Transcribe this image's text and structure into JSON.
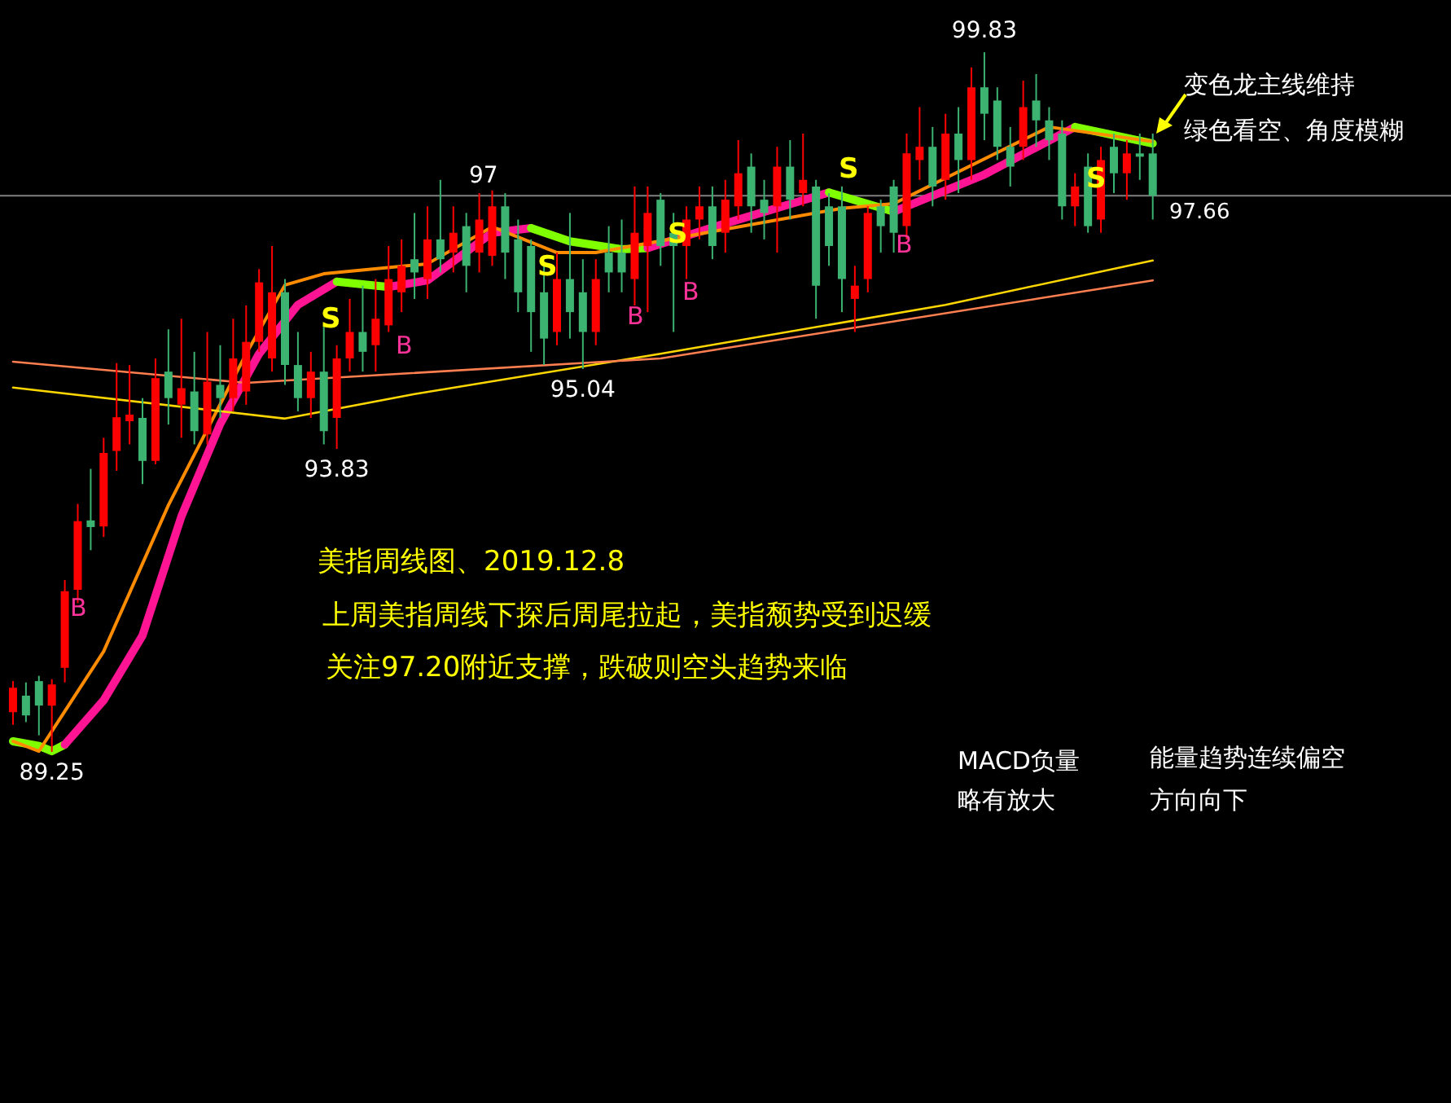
{
  "chart_data": {
    "type": "candlestick",
    "categories": [
      null,
      null,
      null,
      null,
      null,
      null,
      null,
      null,
      null,
      null,
      null,
      null,
      null,
      null,
      null,
      null,
      null,
      null,
      null,
      null,
      null,
      null,
      null,
      null,
      null,
      null,
      null,
      null,
      null,
      null,
      null,
      null,
      null,
      null,
      null,
      null,
      null,
      null,
      null,
      null,
      null,
      null,
      null,
      null,
      null,
      null,
      null,
      null,
      null,
      null,
      null,
      null,
      null,
      null,
      null,
      null,
      null,
      null,
      null,
      null,
      null,
      null,
      null,
      null,
      null,
      null,
      null,
      null,
      null,
      null,
      null,
      null,
      null,
      null,
      null,
      null,
      null,
      null,
      null,
      null,
      null,
      null,
      null,
      null,
      null,
      null,
      null,
      null,
      null
    ],
    "ohlc": [
      [
        89.85,
        90.32,
        89.66,
        90.22
      ],
      [
        90.1,
        90.3,
        89.7,
        89.8
      ],
      [
        90.32,
        90.4,
        89.5,
        89.95
      ],
      [
        89.95,
        90.35,
        89.25,
        90.27
      ],
      [
        90.52,
        91.85,
        90.3,
        91.68
      ],
      [
        91.7,
        93.0,
        91.5,
        92.74
      ],
      [
        92.75,
        93.53,
        92.3,
        92.65
      ],
      [
        92.66,
        94.0,
        92.5,
        93.77
      ],
      [
        93.8,
        95.13,
        93.5,
        94.31
      ],
      [
        94.25,
        95.1,
        93.9,
        94.35
      ],
      [
        94.3,
        94.6,
        93.3,
        93.65
      ],
      [
        93.65,
        95.2,
        93.6,
        94.9
      ],
      [
        95.0,
        95.64,
        94.2,
        94.6
      ],
      [
        94.5,
        95.8,
        94.0,
        94.75
      ],
      [
        94.7,
        95.3,
        93.9,
        94.1
      ],
      [
        94.05,
        95.6,
        93.9,
        94.85
      ],
      [
        94.8,
        95.4,
        94.3,
        94.6
      ],
      [
        94.6,
        95.8,
        94.4,
        95.2
      ],
      [
        94.7,
        96.0,
        94.5,
        95.45
      ],
      [
        95.45,
        96.55,
        95.3,
        96.35
      ],
      [
        95.2,
        96.9,
        95.0,
        96.2
      ],
      [
        96.2,
        96.4,
        94.8,
        95.1
      ],
      [
        95.1,
        95.6,
        94.4,
        94.6
      ],
      [
        94.6,
        95.3,
        94.3,
        95.0
      ],
      [
        95.0,
        95.7,
        93.9,
        94.1
      ],
      [
        94.3,
        95.4,
        93.83,
        95.2
      ],
      [
        95.2,
        96.1,
        95.0,
        95.6
      ],
      [
        95.6,
        96.3,
        95.0,
        95.3
      ],
      [
        95.4,
        96.4,
        95.0,
        95.8
      ],
      [
        95.7,
        96.9,
        95.6,
        96.4
      ],
      [
        96.2,
        97.0,
        95.9,
        96.6
      ],
      [
        96.7,
        97.4,
        96.1,
        96.5
      ],
      [
        96.4,
        97.5,
        96.1,
        97.0
      ],
      [
        97.0,
        97.9,
        96.5,
        96.7
      ],
      [
        96.8,
        97.5,
        96.5,
        97.1
      ],
      [
        97.2,
        97.4,
        96.2,
        96.6
      ],
      [
        96.8,
        97.7,
        96.5,
        97.3
      ],
      [
        96.75,
        97.74,
        96.6,
        97.5
      ],
      [
        97.5,
        97.7,
        96.4,
        96.8
      ],
      [
        97.0,
        97.3,
        95.9,
        96.2
      ],
      [
        96.9,
        97.0,
        95.3,
        95.9
      ],
      [
        96.2,
        96.6,
        95.1,
        95.5
      ],
      [
        95.6,
        96.8,
        95.4,
        96.4
      ],
      [
        96.4,
        97.4,
        95.5,
        95.9
      ],
      [
        96.2,
        96.7,
        95.04,
        95.6
      ],
      [
        95.6,
        96.7,
        95.4,
        96.4
      ],
      [
        96.8,
        97.2,
        96.2,
        96.5
      ],
      [
        96.8,
        97.3,
        96.2,
        96.5
      ],
      [
        96.4,
        97.8,
        96.0,
        97.1
      ],
      [
        96.9,
        97.8,
        95.9,
        97.4
      ],
      [
        97.6,
        97.7,
        96.6,
        96.9
      ],
      [
        97.1,
        97.4,
        95.6,
        96.9
      ],
      [
        96.9,
        97.5,
        96.4,
        97.3
      ],
      [
        97.3,
        97.8,
        97.0,
        97.5
      ],
      [
        97.5,
        97.8,
        96.7,
        96.9
      ],
      [
        97.1,
        97.9,
        96.8,
        97.6
      ],
      [
        97.5,
        98.5,
        97.3,
        98.0
      ],
      [
        98.1,
        98.3,
        97.1,
        97.5
      ],
      [
        97.6,
        97.9,
        97.0,
        97.4
      ],
      [
        97.5,
        98.4,
        96.8,
        98.1
      ],
      [
        98.1,
        98.5,
        97.3,
        97.6
      ],
      [
        97.7,
        98.6,
        97.5,
        97.9
      ],
      [
        97.8,
        97.9,
        95.8,
        96.3
      ],
      [
        97.5,
        97.7,
        96.6,
        96.9
      ],
      [
        97.5,
        97.8,
        95.9,
        96.4
      ],
      [
        96.1,
        96.6,
        95.6,
        96.3
      ],
      [
        96.4,
        97.5,
        96.2,
        97.4
      ],
      [
        97.5,
        97.6,
        96.8,
        97.2
      ],
      [
        97.8,
        97.9,
        96.8,
        97.1
      ],
      [
        97.2,
        98.6,
        97.0,
        98.3
      ],
      [
        98.2,
        99.0,
        97.9,
        98.4
      ],
      [
        98.4,
        98.7,
        97.5,
        97.8
      ],
      [
        97.9,
        98.9,
        97.6,
        98.6
      ],
      [
        98.6,
        99.0,
        97.7,
        98.2
      ],
      [
        98.2,
        99.6,
        97.9,
        99.3
      ],
      [
        99.3,
        99.83,
        98.5,
        98.9
      ],
      [
        99.1,
        99.3,
        98.2,
        98.4
      ],
      [
        98.4,
        98.7,
        97.8,
        98.1
      ],
      [
        98.4,
        99.4,
        98.2,
        99.0
      ],
      [
        99.1,
        99.5,
        98.4,
        98.8
      ],
      [
        98.8,
        99.0,
        98.2,
        98.5
      ],
      [
        98.6,
        98.8,
        97.3,
        97.5
      ],
      [
        97.5,
        98.0,
        97.2,
        97.8
      ],
      [
        98.1,
        98.3,
        97.1,
        97.2
      ],
      [
        97.3,
        98.4,
        97.1,
        98.2
      ],
      [
        98.4,
        98.6,
        97.7,
        98.0
      ],
      [
        98.0,
        98.5,
        97.6,
        98.3
      ],
      [
        98.3,
        98.6,
        97.9,
        98.25
      ],
      [
        98.3,
        98.6,
        97.3,
        97.66
      ]
    ],
    "colors": [
      "#ff0000",
      "#3cb371",
      "#3cb371",
      "#ff0000",
      "#ff0000",
      "#ff0000",
      "#3cb371",
      "#ff0000",
      "#ff0000",
      "#ff0000",
      "#3cb371",
      "#ff0000",
      "#3cb371",
      "#ff0000",
      "#3cb371",
      "#ff0000",
      "#3cb371",
      "#ff0000",
      "#ff0000",
      "#ff0000",
      "#ff0000",
      "#3cb371",
      "#3cb371",
      "#ff0000",
      "#3cb371",
      "#ff0000",
      "#ff0000",
      "#3cb371",
      "#ff0000",
      "#ff0000",
      "#ff0000",
      "#3cb371",
      "#ff0000",
      "#3cb371",
      "#ff0000",
      "#3cb371",
      "#ff0000",
      "#ff0000",
      "#3cb371",
      "#3cb371",
      "#3cb371",
      "#3cb371",
      "#ff0000",
      "#3cb371",
      "#3cb371",
      "#ff0000",
      "#3cb371",
      "#3cb371",
      "#ff0000",
      "#ff0000",
      "#3cb371",
      "#3cb371",
      "#ff0000",
      "#ff0000",
      "#3cb371",
      "#ff0000",
      "#ff0000",
      "#3cb371",
      "#3cb371",
      "#ff0000",
      "#3cb371",
      "#ff0000",
      "#3cb371",
      "#3cb371",
      "#3cb371",
      "#ff0000",
      "#ff0000",
      "#3cb371",
      "#3cb371",
      "#ff0000",
      "#ff0000",
      "#3cb371",
      "#ff0000",
      "#3cb371",
      "#ff0000",
      "#3cb371",
      "#3cb371",
      "#3cb371",
      "#ff0000",
      "#3cb371",
      "#3cb371",
      "#3cb371",
      "#ff0000",
      "#3cb371",
      "#ff0000",
      "#3cb371",
      "#ff0000",
      "#3cb371",
      "#3cb371"
    ],
    "series": [
      {
        "type": "line",
        "color": "#80ff00",
        "values": [
          89.41,
          null,
          89.34,
          89.26,
          89.36,
          null,
          null,
          null,
          null,
          null,
          null,
          null,
          null,
          null,
          null,
          null,
          null,
          null,
          null,
          null,
          null,
          null,
          null,
          null,
          null,
          null,
          null,
          null,
          null,
          null,
          null,
          null,
          null,
          null,
          null,
          null,
          null,
          null,
          null,
          null,
          null,
          null,
          null,
          null,
          null,
          null,
          null,
          null,
          null,
          null,
          null,
          null,
          null,
          null,
          null,
          null,
          null,
          null,
          null,
          null,
          null,
          null,
          null,
          null,
          null,
          null,
          null,
          null,
          null,
          null,
          null,
          null,
          null,
          null,
          null,
          null,
          null,
          null,
          null,
          null,
          null,
          null,
          null,
          null,
          null,
          null,
          null,
          null,
          null
        ]
      },
      {
        "type": "line",
        "color": "#ff1493",
        "values": [
          null,
          null,
          null,
          null,
          89.36,
          null,
          null,
          90.03,
          null,
          null,
          91.01,
          null,
          null,
          92.81,
          null,
          null,
          94.21,
          null,
          null,
          95.27,
          null,
          null,
          96.01,
          null,
          null,
          96.36,
          null,
          null,
          null,
          null,
          null,
          null,
          null,
          null,
          null,
          null,
          null,
          null,
          null,
          null,
          null,
          null,
          null,
          null,
          null,
          null,
          null,
          null,
          null,
          null,
          null,
          null,
          null,
          null,
          null,
          null,
          null,
          null,
          null,
          null,
          null,
          null,
          null,
          null,
          null,
          null,
          null,
          null,
          null,
          null,
          null,
          null,
          null,
          null,
          null,
          null,
          null,
          null,
          null,
          null,
          null,
          null,
          null,
          null,
          null,
          null,
          null,
          null,
          null
        ]
      },
      {
        "type": "line",
        "color": "#80ff00",
        "values": [
          null,
          null,
          null,
          null,
          null,
          null,
          null,
          null,
          null,
          null,
          null,
          null,
          null,
          null,
          null,
          null,
          null,
          null,
          null,
          null,
          null,
          null,
          null,
          null,
          null,
          96.36,
          null,
          null,
          null,
          96.28,
          null,
          null,
          null,
          null,
          null,
          null,
          null,
          null,
          null,
          null,
          null,
          null,
          null,
          null,
          null,
          null,
          null,
          null,
          null,
          null,
          null,
          null,
          null,
          null,
          null,
          null,
          null,
          null,
          null,
          null,
          null,
          null,
          null,
          null,
          null,
          null,
          null,
          null,
          null,
          null,
          null,
          null,
          null,
          null,
          null,
          null,
          null,
          null,
          null,
          null,
          null,
          null,
          null,
          null,
          null,
          null,
          null,
          null,
          null
        ]
      },
      {
        "type": "line",
        "color": "#ff1493",
        "values": [
          null,
          null,
          null,
          null,
          null,
          null,
          null,
          null,
          null,
          null,
          null,
          null,
          null,
          null,
          null,
          null,
          null,
          null,
          null,
          null,
          null,
          null,
          null,
          null,
          null,
          null,
          null,
          null,
          null,
          96.28,
          null,
          null,
          96.38,
          null,
          null,
          null,
          null,
          97.1,
          null,
          null,
          97.17,
          null,
          null,
          null,
          null,
          null,
          null,
          null,
          null,
          null,
          null,
          null,
          null,
          null,
          null,
          null,
          null,
          null,
          null,
          null,
          null,
          null,
          null,
          null,
          null,
          null,
          null,
          null,
          null,
          null,
          null,
          null,
          null,
          null,
          null,
          null,
          null,
          null,
          null,
          null,
          null,
          null,
          null,
          null,
          null,
          null,
          null,
          null,
          null
        ]
      },
      {
        "type": "line",
        "color": "#80ff00",
        "values": [
          null,
          null,
          null,
          null,
          null,
          null,
          null,
          null,
          null,
          null,
          null,
          null,
          null,
          null,
          null,
          null,
          null,
          null,
          null,
          null,
          null,
          null,
          null,
          null,
          null,
          null,
          null,
          null,
          null,
          null,
          null,
          null,
          null,
          null,
          null,
          null,
          null,
          null,
          null,
          null,
          97.17,
          null,
          null,
          96.97,
          null,
          null,
          null,
          96.85,
          null,
          96.87,
          null,
          null,
          null,
          null,
          null,
          null,
          null,
          null,
          null,
          null,
          null,
          null,
          null,
          null,
          null,
          null,
          null,
          null,
          null,
          null,
          null,
          null,
          null,
          null,
          null,
          null,
          null,
          null,
          null,
          null,
          null,
          null,
          null,
          null,
          null,
          null,
          null,
          null,
          null
        ]
      },
      {
        "type": "line",
        "color": "#ff1493",
        "values": [
          null,
          null,
          null,
          null,
          null,
          null,
          null,
          null,
          null,
          null,
          null,
          null,
          null,
          null,
          null,
          null,
          null,
          null,
          null,
          null,
          null,
          null,
          null,
          null,
          null,
          null,
          null,
          null,
          null,
          null,
          null,
          null,
          null,
          null,
          null,
          null,
          null,
          null,
          null,
          null,
          null,
          null,
          null,
          null,
          null,
          null,
          null,
          null,
          null,
          96.87,
          null,
          null,
          null,
          null,
          null,
          97.24,
          null,
          null,
          null,
          null,
          null,
          null,
          null,
          97.71,
          null,
          null,
          null,
          null,
          null,
          null,
          null,
          null,
          null,
          null,
          null,
          null,
          null,
          null,
          null,
          null,
          null,
          null,
          null,
          null,
          null,
          null,
          null,
          null,
          null
        ]
      },
      {
        "type": "line",
        "color": "#80ff00",
        "values": [
          null,
          null,
          null,
          null,
          null,
          null,
          null,
          null,
          null,
          null,
          null,
          null,
          null,
          null,
          null,
          null,
          null,
          null,
          null,
          null,
          null,
          null,
          null,
          null,
          null,
          null,
          null,
          null,
          null,
          null,
          null,
          null,
          null,
          null,
          null,
          null,
          null,
          null,
          null,
          null,
          null,
          null,
          null,
          null,
          null,
          null,
          null,
          null,
          null,
          null,
          null,
          null,
          null,
          null,
          null,
          null,
          null,
          null,
          null,
          null,
          null,
          null,
          null,
          97.71,
          null,
          null,
          null,
          null,
          97.42,
          null,
          null,
          null,
          null,
          null,
          null,
          null,
          null,
          null,
          null,
          null,
          null,
          null,
          null,
          null,
          null,
          null,
          null,
          null,
          null
        ]
      },
      {
        "type": "line",
        "color": "#ff1493",
        "values": [
          null,
          null,
          null,
          null,
          null,
          null,
          null,
          null,
          null,
          null,
          null,
          null,
          null,
          null,
          null,
          null,
          null,
          null,
          null,
          null,
          null,
          null,
          null,
          null,
          null,
          null,
          null,
          null,
          null,
          null,
          null,
          null,
          null,
          null,
          null,
          null,
          null,
          null,
          null,
          null,
          null,
          null,
          null,
          null,
          null,
          null,
          null,
          null,
          null,
          null,
          null,
          null,
          null,
          null,
          null,
          null,
          null,
          null,
          null,
          null,
          null,
          null,
          null,
          null,
          null,
          null,
          null,
          null,
          97.42,
          null,
          null,
          null,
          null,
          null,
          null,
          97.98,
          null,
          null,
          null,
          null,
          null,
          null,
          98.7,
          null,
          null,
          null,
          null,
          null,
          null
        ]
      },
      {
        "type": "line",
        "color": "#80ff00",
        "values": [
          null,
          null,
          null,
          null,
          null,
          null,
          null,
          null,
          null,
          null,
          null,
          null,
          null,
          null,
          null,
          null,
          null,
          null,
          null,
          null,
          null,
          null,
          null,
          null,
          null,
          null,
          null,
          null,
          null,
          null,
          null,
          null,
          null,
          null,
          null,
          null,
          null,
          null,
          null,
          null,
          null,
          null,
          null,
          null,
          null,
          null,
          null,
          null,
          null,
          null,
          null,
          null,
          null,
          null,
          null,
          null,
          null,
          null,
          null,
          null,
          null,
          null,
          null,
          null,
          null,
          null,
          null,
          null,
          null,
          null,
          null,
          null,
          null,
          null,
          null,
          null,
          null,
          null,
          null,
          null,
          null,
          null,
          98.7,
          null,
          null,
          null,
          null,
          null,
          98.45
        ]
      },
      {
        "type": "line",
        "color": "#ff8c00",
        "values": [
          89.41,
          null,
          89.26,
          null,
          null,
          null,
          null,
          90.77,
          null,
          null,
          null,
          null,
          92.98,
          null,
          null,
          null,
          null,
          null,
          95.27,
          null,
          null,
          96.31,
          null,
          null,
          96.48,
          null,
          null,
          null,
          null,
          null,
          null,
          null,
          96.63,
          null,
          null,
          null,
          null,
          97.19,
          null,
          null,
          null,
          null,
          96.8,
          null,
          null,
          96.8,
          null,
          null,
          null,
          null,
          null,
          null,
          null,
          null,
          null,
          null,
          null,
          null,
          null,
          null,
          null,
          null,
          null,
          null,
          97.47,
          null,
          null,
          null,
          97.54,
          null,
          null,
          null,
          null,
          null,
          null,
          null,
          null,
          null,
          null,
          null,
          98.7,
          null,
          null,
          null,
          null,
          null,
          null,
          null,
          98.48
        ]
      },
      {
        "type": "line",
        "color": "#ffd700",
        "values": [
          94.76,
          null,
          null,
          null,
          null,
          null,
          null,
          null,
          null,
          null,
          null,
          null,
          null,
          null,
          null,
          null,
          null,
          null,
          null,
          null,
          null,
          94.29,
          null,
          null,
          null,
          null,
          null,
          null,
          null,
          null,
          null,
          94.66,
          null,
          null,
          null,
          null,
          null,
          null,
          null,
          null,
          null,
          null,
          null,
          null,
          null,
          null,
          null,
          null,
          null,
          null,
          95.27,
          null,
          null,
          null,
          null,
          null,
          null,
          null,
          null,
          null,
          null,
          null,
          null,
          null,
          null,
          null,
          null,
          null,
          null,
          null,
          null,
          null,
          96.01,
          null,
          null,
          null,
          null,
          null,
          null,
          null,
          null,
          null,
          null,
          null,
          null,
          null,
          null,
          null,
          96.68
        ]
      },
      {
        "type": "line",
        "color": "#ff7f50",
        "values": [
          95.15,
          null,
          null,
          null,
          null,
          null,
          null,
          null,
          null,
          null,
          null,
          null,
          null,
          null,
          null,
          null,
          null,
          null,
          94.83,
          null,
          null,
          null,
          null,
          null,
          null,
          null,
          null,
          null,
          null,
          null,
          null,
          null,
          null,
          null,
          null,
          null,
          null,
          null,
          null,
          null,
          null,
          null,
          null,
          null,
          null,
          null,
          null,
          null,
          null,
          null,
          95.2,
          null,
          null,
          null,
          null,
          null,
          null,
          null,
          null,
          null,
          null,
          null,
          null,
          null,
          null,
          null,
          null,
          null,
          null,
          null,
          null,
          null,
          null,
          null,
          null,
          null,
          null,
          null,
          null,
          null,
          null,
          null,
          null,
          null,
          null,
          null,
          null,
          null,
          96.38
        ]
      }
    ],
    "ref_lines": [
      {
        "axis": "y",
        "value": 97.66,
        "label": "97.66",
        "color": "#808080"
      }
    ],
    "annotations": [
      {
        "text": "99.83",
        "y": 99.83
      },
      {
        "text": "95.04",
        "y": 95.04
      },
      {
        "text": "93.83",
        "y": 93.83
      },
      {
        "text": "89.25",
        "y": 89.25
      },
      "97",
      "美指周线图、2019.12.8",
      "上周美指周线下探后周尾拉起，美指颓势受到迟缓",
      "关注97.20附近支撑，跌破则空头趋势来临",
      "变色龙主线维持",
      "绿色看空、角度模糊",
      "MACD负量",
      "略有放大",
      "能量趋势连续偏空",
      "方向向下",
      "S",
      "S",
      "S",
      "S",
      "S",
      "B",
      "B",
      "B",
      "B",
      "B"
    ]
  }
}
